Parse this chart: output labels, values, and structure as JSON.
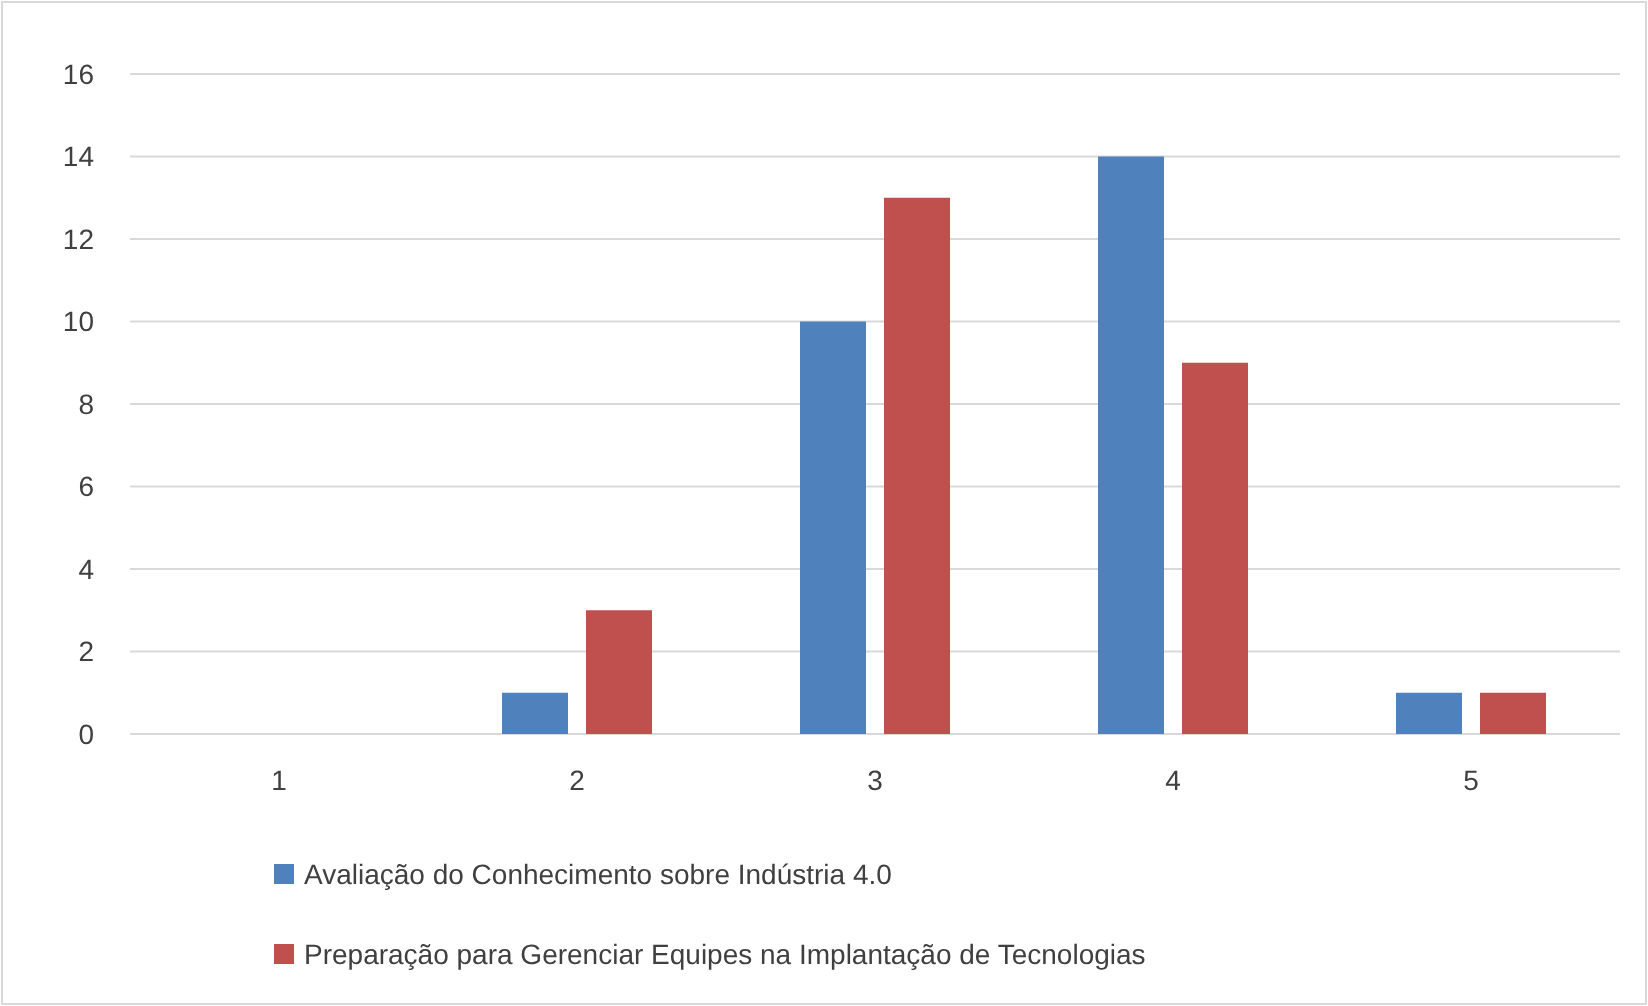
{
  "chart_data": {
    "type": "bar",
    "categories": [
      "1",
      "2",
      "3",
      "4",
      "5"
    ],
    "series": [
      {
        "name": "Avaliação do Conhecimento sobre Indústria 4.0",
        "color": "#4f81bd",
        "values": [
          0,
          1,
          10,
          14,
          1
        ]
      },
      {
        "name": "Preparação para Gerenciar Equipes na Implantação de Tecnologias",
        "color": "#c0504d",
        "values": [
          0,
          3,
          13,
          9,
          1
        ]
      }
    ],
    "ylim": [
      0,
      16
    ],
    "yticks": [
      0,
      2,
      4,
      6,
      8,
      10,
      12,
      14,
      16
    ],
    "grid": "y",
    "legend": "bottom"
  }
}
